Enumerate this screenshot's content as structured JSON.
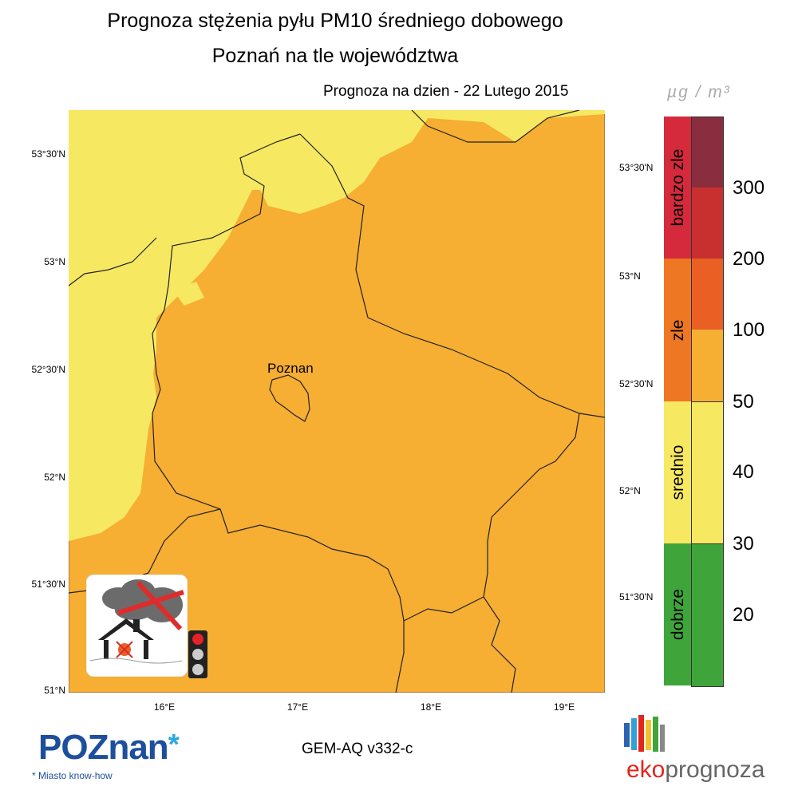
{
  "title": {
    "line1": "Prognoza stężenia pyłu PM10 średniego dobowego",
    "line2": "Poznań na tle województwa",
    "forecast_date": "Prognoza na dzien -  22 Lutego 2015"
  },
  "map": {
    "city_label": "Poznan",
    "lat_labels_left": [
      "53°30'N",
      "53°N",
      "52°30'N",
      "52°N",
      "51°30'N",
      "51°N"
    ],
    "lat_labels_right": [
      "53°30'N",
      "53°N",
      "52°30'N",
      "52°N",
      "51°30'N"
    ],
    "lon_labels": [
      "16°E",
      "17°E",
      "18°E",
      "19°E"
    ],
    "colors": {
      "background": "#f6ae33",
      "lower_band": "#f7e862",
      "border": "#222222"
    }
  },
  "legend": {
    "unit": "µg / m³",
    "categories": [
      {
        "label": "bardzo zle",
        "color": "#d42a3c"
      },
      {
        "label": "zle",
        "color": "#ee7724"
      },
      {
        "label": "srednio",
        "color": "#f7e862"
      },
      {
        "label": "dobrze",
        "color": "#3fa53b"
      }
    ],
    "levels": [
      "300",
      "200",
      "100",
      "50",
      "40",
      "30",
      "20"
    ],
    "swatch_colors": [
      "#892d3f",
      "#c8302f",
      "#e95f24",
      "#f6ae33",
      "#f7e862",
      "#f7e862",
      "#3fa53b"
    ]
  },
  "icon": {
    "name": "no-burning-smog-icon"
  },
  "traffic_light": {
    "active": "red"
  },
  "footer": {
    "poznan_logo": "POZnan",
    "poznan_tagline": "* Miasto know-how",
    "model": "GEM-AQ v332-c",
    "eko_prefix": "eko",
    "eko_suffix": "prognoza"
  }
}
